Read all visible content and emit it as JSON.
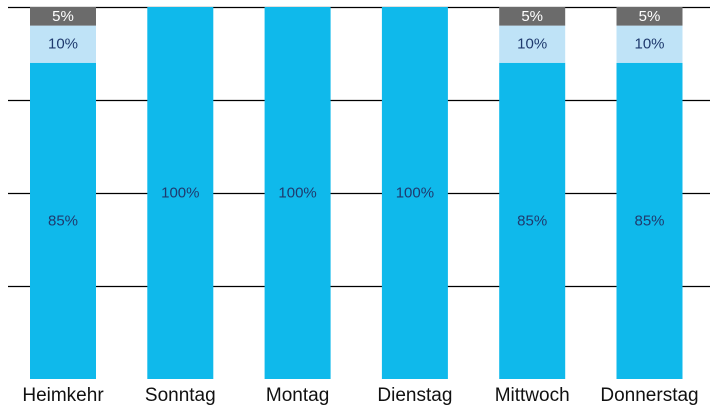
{
  "chart_data": {
    "type": "bar",
    "stacked": true,
    "percent_stacked": true,
    "categories": [
      "Heimkehr",
      "Sonntag",
      "Montag",
      "Dienstag",
      "Mittwoch",
      "Donnerstag"
    ],
    "series": [
      {
        "values": [
          85,
          100,
          100,
          100,
          85,
          85
        ],
        "labels": [
          "85%",
          "100%",
          "100%",
          "100%",
          "85%",
          "85%"
        ],
        "color": "#0fb9eb",
        "label_color": "#1f3a6e"
      },
      {
        "values": [
          10,
          0,
          0,
          0,
          10,
          10
        ],
        "labels": [
          "10%",
          "",
          "",
          "",
          "10%",
          "10%"
        ],
        "color": "#bfe3f7",
        "label_color": "#1f3a6e"
      },
      {
        "values": [
          5,
          0,
          0,
          0,
          5,
          5
        ],
        "labels": [
          "5%",
          "",
          "",
          "",
          "5%",
          "5%"
        ],
        "color": "#6b6b6b",
        "label_color": "#ffffff"
      }
    ],
    "ylim": [
      0,
      100
    ],
    "grid": true,
    "legend": "none",
    "title": "",
    "xlabel": "",
    "ylabel": ""
  }
}
